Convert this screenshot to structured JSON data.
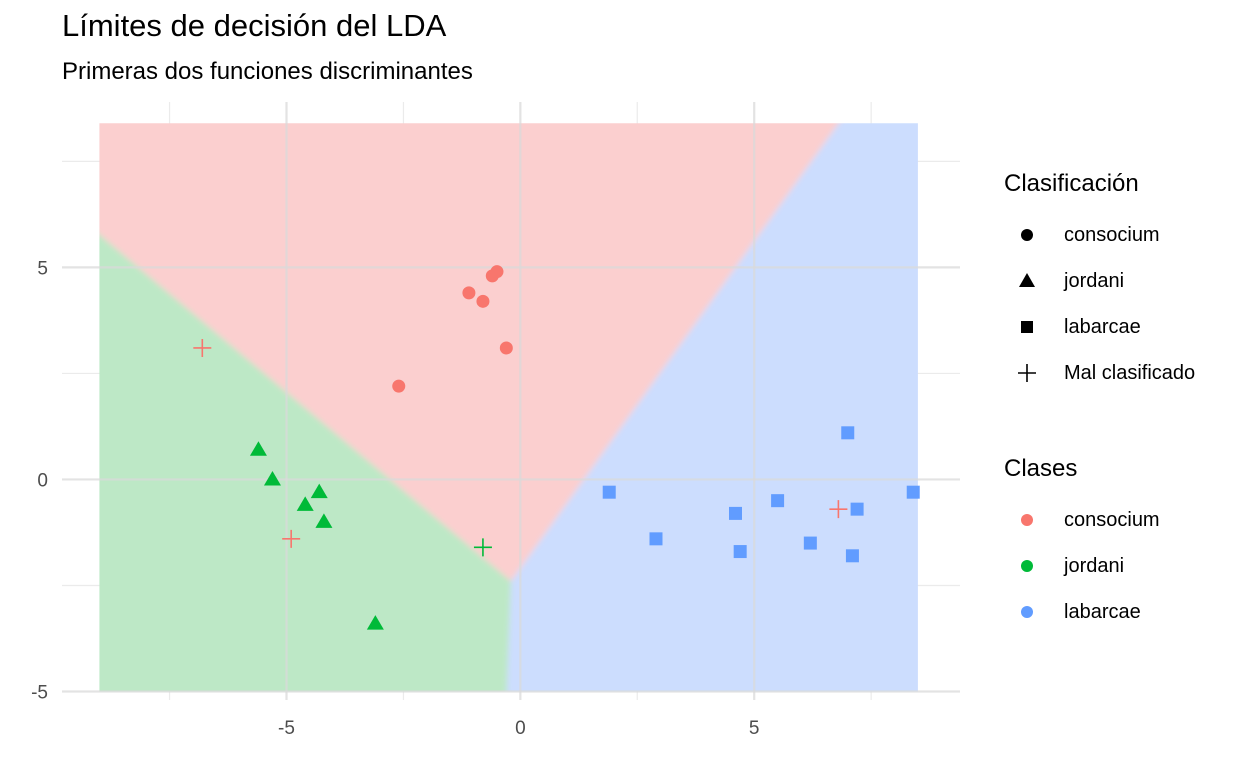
{
  "title": "Límites de decisión del LDA",
  "subtitle": "Primeras dos funciones discriminantes",
  "colors": {
    "consocium": "#F8766D",
    "jordani": "#00BA38",
    "labarcae": "#619CFF",
    "consocium_region": "#FBCFCF",
    "jordani_region": "#BDE8C6",
    "labarcae_region": "#CCDDFE",
    "grid": "#EBEBEB"
  },
  "legend_shape": {
    "title": "Clasificación",
    "items": [
      {
        "label": "consocium",
        "shape": "circle"
      },
      {
        "label": "jordani",
        "shape": "triangle"
      },
      {
        "label": "labarcae",
        "shape": "square"
      },
      {
        "label": "Mal clasificado",
        "shape": "plus"
      }
    ]
  },
  "legend_color": {
    "title": "Clases",
    "items": [
      {
        "label": "consocium",
        "color": "#F8766D"
      },
      {
        "label": "jordani",
        "color": "#00BA38"
      },
      {
        "label": "labarcae",
        "color": "#619CFF"
      }
    ]
  },
  "chart_data": {
    "type": "scatter",
    "title": "Límites de decisión del LDA",
    "subtitle": "Primeras dos funciones discriminantes",
    "xlabel": "",
    "ylabel": "",
    "xlim": [
      -9.8,
      9.4
    ],
    "ylim": [
      -5.2,
      8.9
    ],
    "x_ticks": [
      -5,
      0,
      5
    ],
    "x_tick_labels": [
      "-5",
      "0",
      "5"
    ],
    "y_ticks": [
      -5,
      0,
      5
    ],
    "y_tick_labels": [
      "-5",
      "0",
      "5"
    ],
    "grid": true,
    "legend_position": "right",
    "regions": {
      "x_range": [
        -9.0,
        8.5
      ],
      "y_range": [
        -5.0,
        8.4
      ],
      "boundary_vertex": [
        -0.2,
        -2.4
      ],
      "boundary_consocium_jordani_end": [
        -9.0,
        5.9
      ],
      "boundary_consocium_labarcae_end": [
        6.7,
        8.4
      ]
    },
    "points": [
      {
        "x": -0.6,
        "y": 4.8,
        "true": "consocium",
        "pred": "consocium"
      },
      {
        "x": -0.5,
        "y": 4.9,
        "true": "consocium",
        "pred": "consocium"
      },
      {
        "x": -1.1,
        "y": 4.4,
        "true": "consocium",
        "pred": "consocium"
      },
      {
        "x": -0.8,
        "y": 4.2,
        "true": "consocium",
        "pred": "consocium"
      },
      {
        "x": -0.3,
        "y": 3.1,
        "true": "consocium",
        "pred": "consocium"
      },
      {
        "x": -2.6,
        "y": 2.2,
        "true": "consocium",
        "pred": "consocium"
      },
      {
        "x": -6.8,
        "y": 3.1,
        "true": "consocium",
        "pred": "misclassified"
      },
      {
        "x": -4.9,
        "y": -1.4,
        "true": "consocium",
        "pred": "misclassified"
      },
      {
        "x": 6.8,
        "y": -0.7,
        "true": "consocium",
        "pred": "misclassified"
      },
      {
        "x": -5.6,
        "y": 0.7,
        "true": "jordani",
        "pred": "jordani"
      },
      {
        "x": -5.3,
        "y": 0.0,
        "true": "jordani",
        "pred": "jordani"
      },
      {
        "x": -4.3,
        "y": -0.3,
        "true": "jordani",
        "pred": "jordani"
      },
      {
        "x": -4.6,
        "y": -0.6,
        "true": "jordani",
        "pred": "jordani"
      },
      {
        "x": -4.2,
        "y": -1.0,
        "true": "jordani",
        "pred": "jordani"
      },
      {
        "x": -3.1,
        "y": -3.4,
        "true": "jordani",
        "pred": "jordani"
      },
      {
        "x": -0.8,
        "y": -1.6,
        "true": "jordani",
        "pred": "misclassified"
      },
      {
        "x": 7.0,
        "y": 1.1,
        "true": "labarcae",
        "pred": "labarcae"
      },
      {
        "x": 1.9,
        "y": -0.3,
        "true": "labarcae",
        "pred": "labarcae"
      },
      {
        "x": 5.5,
        "y": -0.5,
        "true": "labarcae",
        "pred": "labarcae"
      },
      {
        "x": 8.4,
        "y": -0.3,
        "true": "labarcae",
        "pred": "labarcae"
      },
      {
        "x": 4.6,
        "y": -0.8,
        "true": "labarcae",
        "pred": "labarcae"
      },
      {
        "x": 7.2,
        "y": -0.7,
        "true": "labarcae",
        "pred": "labarcae"
      },
      {
        "x": 2.9,
        "y": -1.4,
        "true": "labarcae",
        "pred": "labarcae"
      },
      {
        "x": 4.7,
        "y": -1.7,
        "true": "labarcae",
        "pred": "labarcae"
      },
      {
        "x": 6.2,
        "y": -1.5,
        "true": "labarcae",
        "pred": "labarcae"
      },
      {
        "x": 7.1,
        "y": -1.8,
        "true": "labarcae",
        "pred": "labarcae"
      }
    ]
  }
}
